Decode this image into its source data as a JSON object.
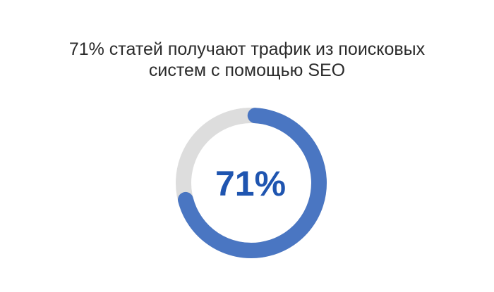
{
  "chart_data": {
    "type": "pie",
    "variant": "donut",
    "title_lines": [
      "71% статей получают трафик из поисковых",
      "систем с помощью SEO"
    ],
    "center_label": "71%",
    "values": [
      71,
      29
    ],
    "colors": {
      "filled": "#4a76c2",
      "remaining": "#dddddd",
      "center_text": "#1f55b0"
    }
  }
}
